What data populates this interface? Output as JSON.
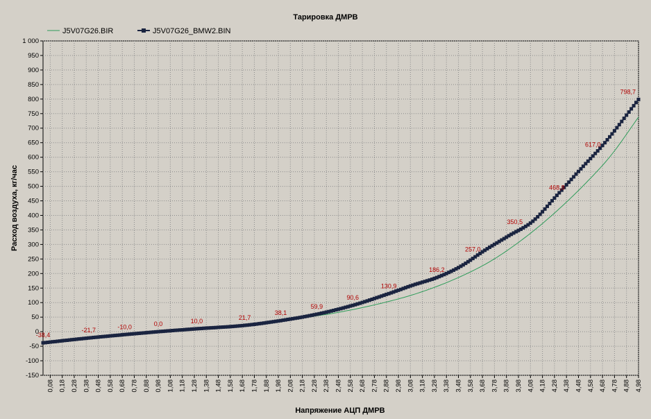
{
  "chart_data": {
    "type": "line",
    "title": "Тарировка ДМРВ",
    "xlabel": "Напряжение АЦП ДМРВ",
    "ylabel": "Расход воздуха, кг/час",
    "ylim": [
      -150,
      1000
    ],
    "xlim": [
      0.02,
      4.98
    ],
    "grid": true,
    "legend_position": "top-left",
    "y_ticks": [
      "1 000",
      "950",
      "900",
      "850",
      "800",
      "750",
      "700",
      "650",
      "600",
      "550",
      "500",
      "450",
      "400",
      "350",
      "300",
      "250",
      "200",
      "150",
      "100",
      "50",
      "0",
      "-50",
      "-100",
      "-150"
    ],
    "x_ticks": [
      "0,08",
      "0,18",
      "0,28",
      "0,38",
      "0,48",
      "0,58",
      "0,68",
      "0,78",
      "0,88",
      "0,98",
      "1,08",
      "1,18",
      "1,28",
      "1,38",
      "1,48",
      "1,58",
      "1,68",
      "1,78",
      "1,88",
      "1,98",
      "2,08",
      "2,18",
      "2,28",
      "2,38",
      "2,48",
      "2,58",
      "2,68",
      "2,78",
      "2,88",
      "2,98",
      "3,08",
      "3,18",
      "3,28",
      "3,38",
      "3,48",
      "3,58",
      "3,68",
      "3,78",
      "3,88",
      "3,98",
      "4,08",
      "4,18",
      "4,28",
      "4,38",
      "4,48",
      "4,58",
      "4,68",
      "4,78",
      "4,88",
      "4,98"
    ],
    "colors": {
      "series1": "#2e9c5a",
      "series2": "#1a2440",
      "labels": "#b00000",
      "plot_bg": "#d4d0c8",
      "grid": "#8c8c8c"
    },
    "series": [
      {
        "name": "J5V07G26.BIR",
        "style": "line",
        "x": [
          0.02,
          0.5,
          1.0,
          1.5,
          2.0,
          2.5,
          3.0,
          3.25,
          3.5,
          3.75,
          4.0,
          4.25,
          4.5,
          4.75,
          4.98
        ],
        "y": [
          -38,
          -19,
          0,
          16,
          38,
          68,
          115,
          148,
          190,
          243,
          313,
          397,
          494,
          606,
          738
        ]
      },
      {
        "name": "J5V07G26_BMW2.BIN",
        "style": "line-square-markers",
        "x": [
          0.02,
          0.4,
          0.98,
          1.3,
          1.7,
          2.0,
          2.3,
          2.6,
          2.9,
          3.1,
          3.3,
          3.5,
          3.7,
          3.9,
          4.1,
          4.3,
          4.5,
          4.7,
          4.98
        ],
        "y": [
          -38.4,
          -21.7,
          0.0,
          10.0,
          21.7,
          38.1,
          59.9,
          90.6,
          130.9,
          160,
          186.2,
          225,
          280,
          330,
          380,
          468.8,
          560,
          650,
          798.7
        ]
      }
    ],
    "data_labels": [
      {
        "x": 0.02,
        "y": -38.4,
        "text": "-38,4"
      },
      {
        "x": 0.4,
        "y": -21.7,
        "text": "-21,7"
      },
      {
        "x": 0.7,
        "y": -10.0,
        "text": "-10,0"
      },
      {
        "x": 0.98,
        "y": 0.0,
        "text": "0,0"
      },
      {
        "x": 1.3,
        "y": 10.0,
        "text": "10,0"
      },
      {
        "x": 1.7,
        "y": 21.7,
        "text": "21,7"
      },
      {
        "x": 2.0,
        "y": 38.1,
        "text": "38,1"
      },
      {
        "x": 2.3,
        "y": 59.9,
        "text": "59,9"
      },
      {
        "x": 2.6,
        "y": 90.6,
        "text": "90,6"
      },
      {
        "x": 2.9,
        "y": 130.9,
        "text": "130,9"
      },
      {
        "x": 3.3,
        "y": 186.2,
        "text": "186,2"
      },
      {
        "x": 3.6,
        "y": 257.0,
        "text": "257,0"
      },
      {
        "x": 3.95,
        "y": 350.5,
        "text": "350,5"
      },
      {
        "x": 4.3,
        "y": 468.8,
        "text": "468,8"
      },
      {
        "x": 4.6,
        "y": 617.0,
        "text": "617,0"
      },
      {
        "x": 4.98,
        "y": 798.7,
        "text": "798,7"
      }
    ]
  }
}
